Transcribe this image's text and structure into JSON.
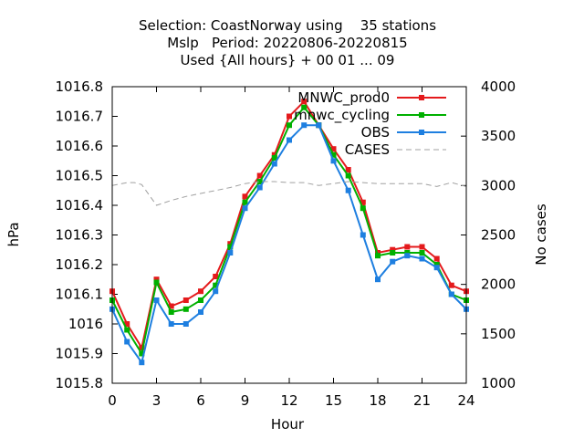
{
  "chart_data": {
    "type": "line",
    "title_lines": [
      "Selection: CoastNorway using    35 stations",
      "Mslp   Period: 20220806-20220815",
      "Used {All hours} + 00 01 ... 09"
    ],
    "xlabel": "Hour",
    "ylabel": "hPa",
    "y2label": "No cases",
    "xlim": [
      0,
      24
    ],
    "ylim": [
      1015.8,
      1016.8
    ],
    "y2lim": [
      1000,
      4000
    ],
    "xticks": [
      "0",
      "3",
      "6",
      "9",
      "12",
      "15",
      "18",
      "21",
      "24"
    ],
    "yticks": [
      "1015.8",
      "1015.9",
      "1016",
      "1016.1",
      "1016.2",
      "1016.3",
      "1016.4",
      "1016.5",
      "1016.6",
      "1016.7",
      "1016.8"
    ],
    "y2ticks": [
      "1000",
      "1500",
      "2000",
      "2500",
      "3000",
      "3500",
      "4000"
    ],
    "grid": false,
    "legend_position": "top-right",
    "x": [
      0,
      1,
      2,
      3,
      4,
      5,
      6,
      7,
      8,
      9,
      10,
      11,
      12,
      13,
      14,
      15,
      16,
      17,
      18,
      19,
      20,
      21,
      22,
      23,
      24
    ],
    "series": [
      {
        "name": "MNWC_prod0",
        "color": "#e41a1c",
        "marker": "square",
        "axis": "left",
        "values": [
          1016.11,
          1016.0,
          1015.92,
          1016.15,
          1016.06,
          1016.08,
          1016.11,
          1016.16,
          1016.27,
          1016.43,
          1016.5,
          1016.57,
          1016.7,
          1016.75,
          1016.67,
          1016.59,
          1016.52,
          1016.41,
          1016.24,
          1016.25,
          1016.26,
          1016.26,
          1016.22,
          1016.13,
          1016.11
        ]
      },
      {
        "name": "mnwc_cycling",
        "color": "#00b000",
        "marker": "square",
        "axis": "left",
        "values": [
          1016.08,
          1015.98,
          1015.9,
          1016.14,
          1016.04,
          1016.05,
          1016.08,
          1016.13,
          1016.26,
          1016.41,
          1016.48,
          1016.56,
          1016.67,
          1016.73,
          1016.67,
          1016.57,
          1016.5,
          1016.39,
          1016.23,
          1016.24,
          1016.24,
          1016.24,
          1016.2,
          1016.1,
          1016.08
        ]
      },
      {
        "name": "OBS",
        "color": "#1e7fe0",
        "marker": "square",
        "axis": "left",
        "values": [
          1016.05,
          1015.94,
          1015.87,
          1016.08,
          1016.0,
          1016.0,
          1016.04,
          1016.11,
          1016.24,
          1016.39,
          1016.46,
          1016.54,
          1016.62,
          1016.67,
          1016.67,
          1016.55,
          1016.45,
          1016.3,
          1016.15,
          1016.21,
          1016.23,
          1016.22,
          1016.19,
          1016.1,
          1016.05
        ]
      },
      {
        "name": "CASES",
        "color": "#a0a0a0",
        "dashed": true,
        "axis": "right",
        "x": [
          0,
          1,
          1.5,
          2,
          3,
          4,
          5,
          6,
          7,
          8,
          9,
          10,
          11,
          12,
          13,
          14,
          15,
          16,
          17,
          18,
          19,
          20,
          21,
          22,
          23,
          24
        ],
        "values": [
          3000,
          3030,
          3030,
          3010,
          2800,
          2850,
          2890,
          2920,
          2950,
          2980,
          3020,
          3040,
          3040,
          3030,
          3030,
          3000,
          3020,
          3040,
          3030,
          3020,
          3020,
          3020,
          3020,
          2990,
          3030,
          2990
        ]
      }
    ]
  }
}
